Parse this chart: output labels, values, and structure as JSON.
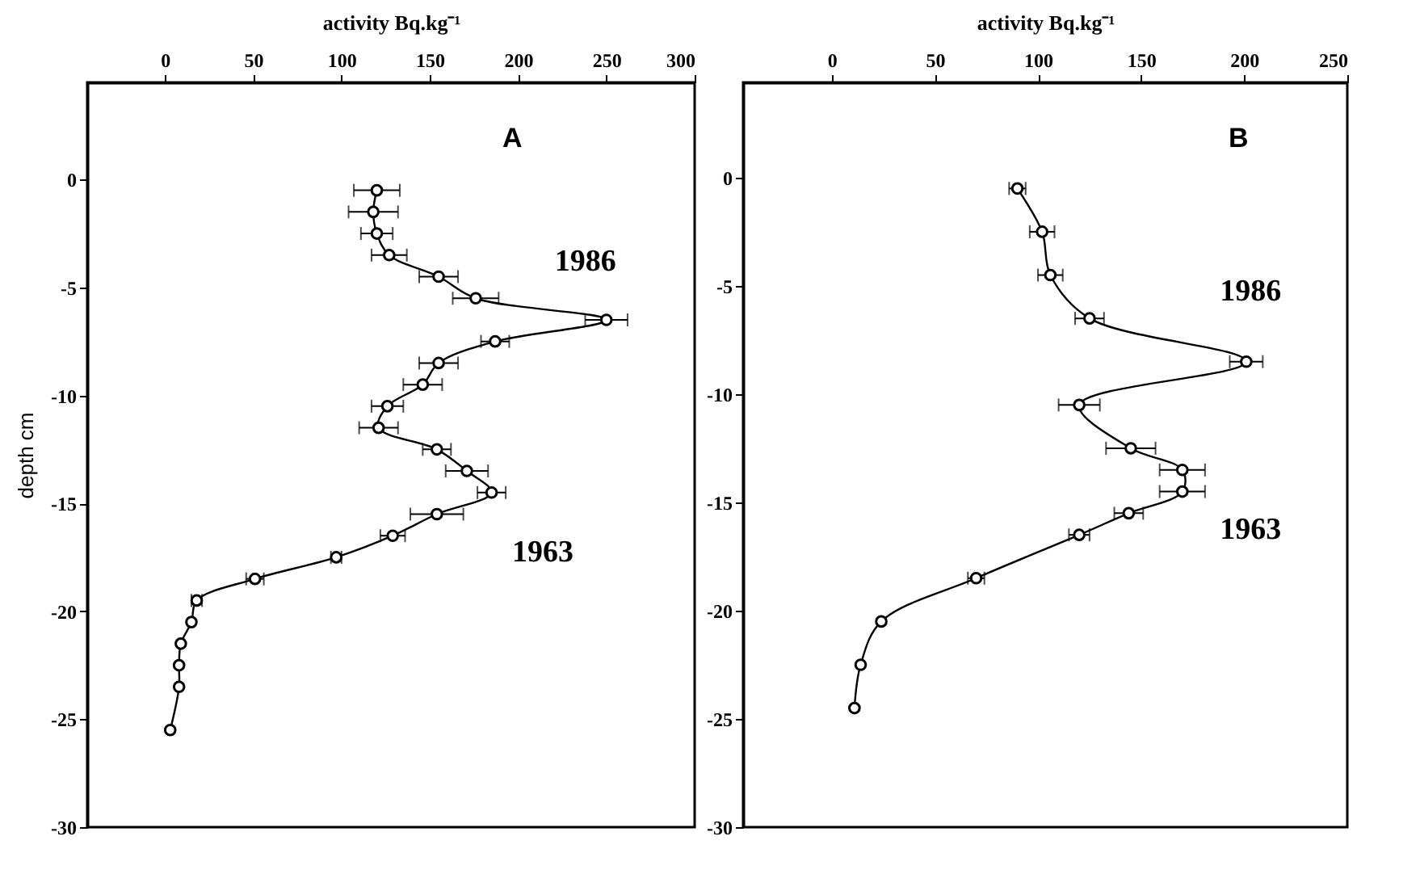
{
  "chart_data": [
    {
      "type": "line",
      "xlabel": "activity Bq.kg⁻¹",
      "ylabel": "depth cm",
      "xlim": [
        -44,
        300
      ],
      "xticks": [
        0,
        50,
        100,
        150,
        200,
        250,
        300
      ],
      "ylim": [
        -30,
        4.5
      ],
      "yticks": [
        0,
        -5,
        -10,
        -15,
        -20,
        -25,
        -30
      ],
      "grid": false,
      "marker": "circle",
      "line_style": "solid",
      "series": [
        {
          "color": "#000000",
          "x": [
            120,
            118,
            120,
            127,
            155,
            176,
            250,
            187,
            155,
            146,
            126,
            121,
            154,
            171,
            185,
            154,
            129,
            97,
            51,
            18,
            15,
            9,
            8,
            8,
            3
          ],
          "values": [
            -0.5,
            -1.5,
            -2.5,
            -3.5,
            -4.5,
            -5.5,
            -6.5,
            -7.5,
            -8.5,
            -9.5,
            -10.5,
            -11.5,
            -12.5,
            -13.5,
            -14.5,
            -15.5,
            -16.5,
            -17.5,
            -18.5,
            -19.5,
            -20.5,
            -21.5,
            -22.5,
            -23.5,
            -25.5
          ],
          "xerrors": [
            13,
            14,
            9,
            10,
            11,
            13,
            12,
            8,
            11,
            11,
            9,
            11,
            8,
            12,
            8,
            15,
            7,
            3,
            5,
            3,
            null,
            null,
            null,
            null,
            null
          ]
        }
      ],
      "annotations": [
        "A",
        "1986",
        "1963"
      ]
    },
    {
      "type": "line",
      "xlabel": "activity Bq.kg⁻¹",
      "xlim": [
        -43,
        250
      ],
      "xticks": [
        0,
        50,
        100,
        150,
        200,
        250
      ],
      "ylim": [
        -30,
        4.4
      ],
      "yticks": [
        0,
        -5,
        -10,
        -15,
        -20,
        -25,
        -30
      ],
      "grid": false,
      "marker": "circle",
      "line_style": "solid",
      "series": [
        {
          "color": "#000000",
          "x": [
            90,
            102,
            106,
            125,
            201,
            120,
            145,
            170,
            170,
            144,
            120,
            70,
            24,
            14,
            11
          ],
          "values": [
            -0.5,
            -2.5,
            -4.5,
            -6.5,
            -8.5,
            -10.5,
            -12.5,
            -13.5,
            -14.5,
            -15.5,
            -16.5,
            -18.5,
            -20.5,
            -22.5,
            -24.5
          ],
          "xerrors": [
            4,
            6,
            6,
            7,
            8,
            10,
            12,
            11,
            11,
            7,
            5,
            4,
            null,
            null,
            null
          ]
        }
      ],
      "annotations": [
        "B",
        "1986",
        "1963"
      ]
    }
  ]
}
